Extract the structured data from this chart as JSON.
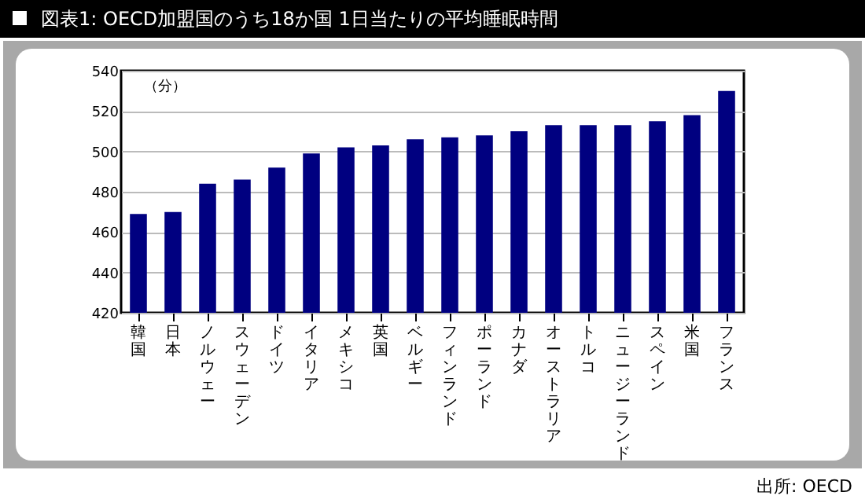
{
  "chart_data": {
    "type": "bar",
    "title": "図表1: OECD加盟国のうち18か国 1日当たりの平均睡眠時間",
    "ylabel": "（分）",
    "categories": [
      "韓国",
      "日本",
      "ノルウェー",
      "スウェーデン",
      "ドイツ",
      "イタリア",
      "メキシコ",
      "英国",
      "ベルギー",
      "フィンランド",
      "ポーランド",
      "カナダ",
      "オーストラリア",
      "トルコ",
      "ニュージーランド",
      "スペイン",
      "米国",
      "フランス"
    ],
    "values": [
      469,
      470,
      484,
      486,
      492,
      499,
      502,
      503,
      506,
      507,
      508,
      510,
      513,
      513,
      513,
      515,
      518,
      530
    ],
    "color": "#000080",
    "ylim": [
      420,
      540
    ],
    "yticks": [
      420,
      440,
      460,
      480,
      500,
      520,
      540
    ],
    "grid": "y",
    "annotations": [
      "出所: OECD"
    ]
  }
}
